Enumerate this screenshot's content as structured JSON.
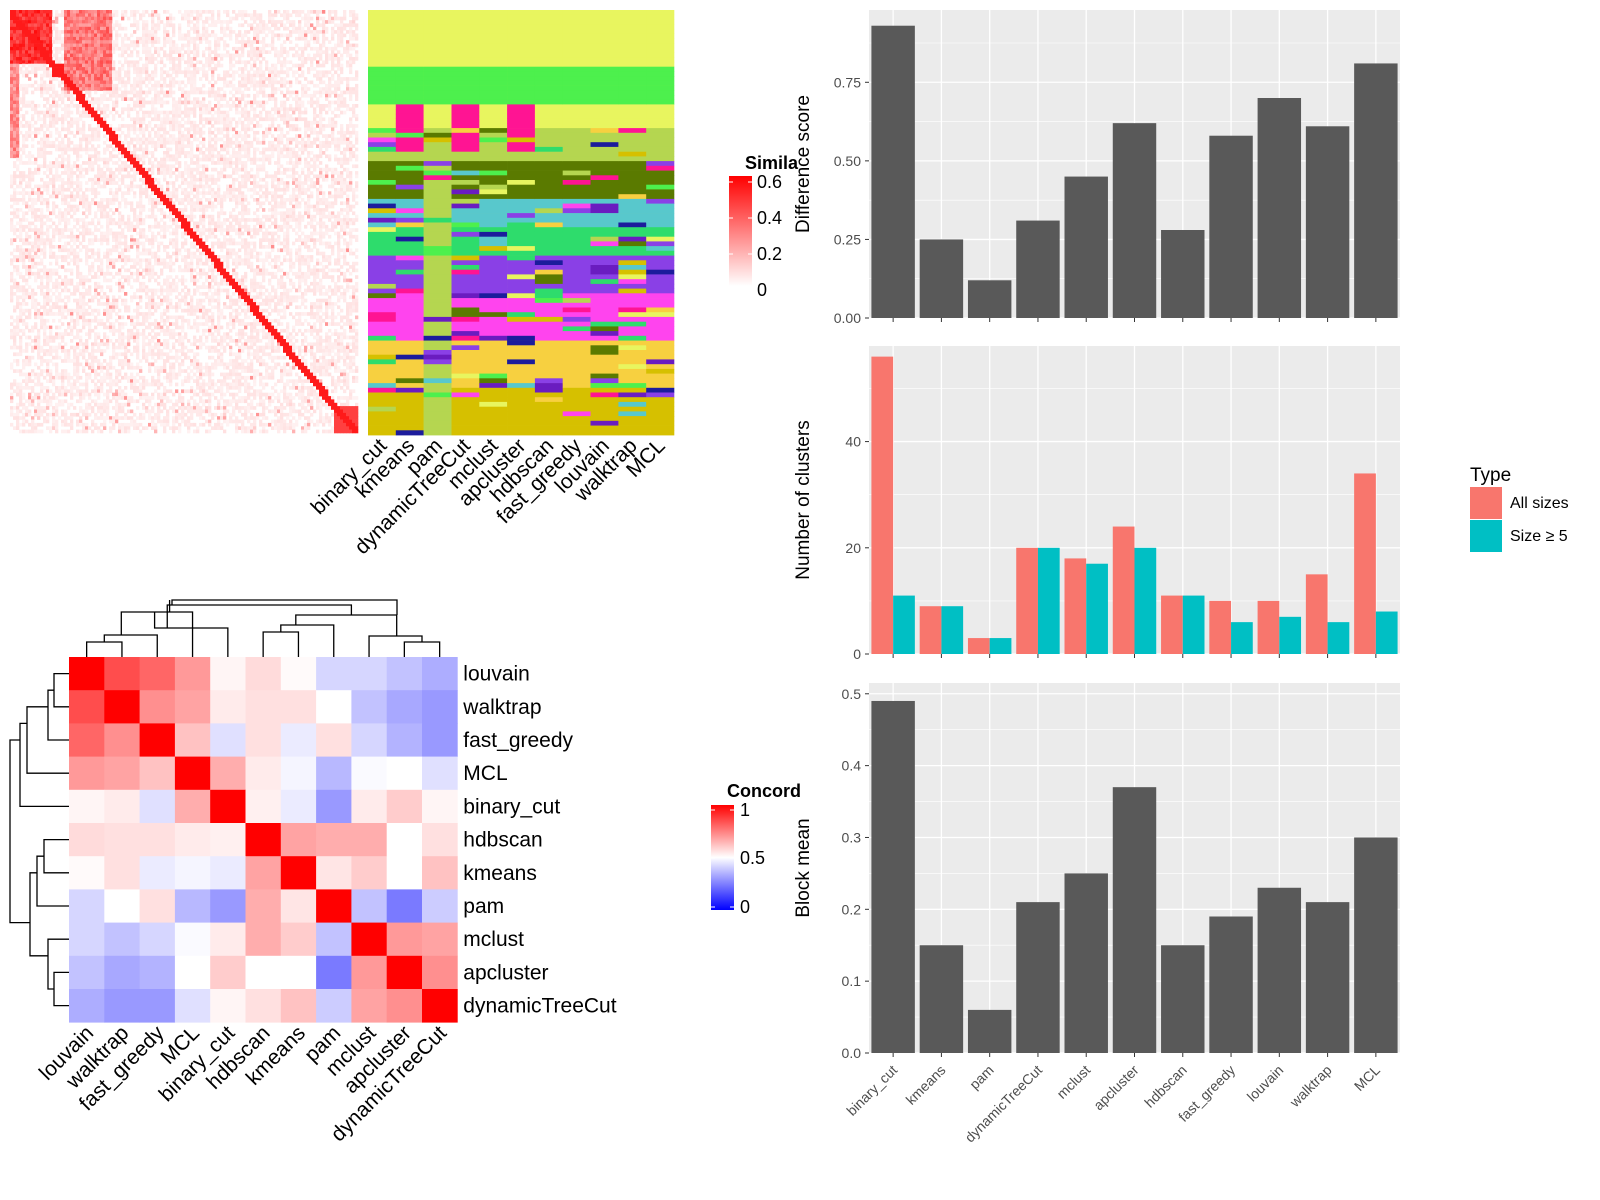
{
  "colors": {
    "panel_bg": "#ebebeb",
    "grid": "#ffffff",
    "bar_gray": "#595959",
    "all_sizes": "#f8766d",
    "size_ge_5": "#00bfc4",
    "heat_red": "#ff0000",
    "heat_white": "#ffffff",
    "heat_blue": "#0000ff"
  },
  "similarity_heatmap": {
    "legend_title": "Simila",
    "legend_ticks": [
      "0.6",
      "0.4",
      "0.2",
      "0"
    ]
  },
  "cluster_assignment": {
    "methods": [
      "binary_cut",
      "kmeans",
      "pam",
      "dynamicTreeCut",
      "mclust",
      "apcluster",
      "hdbscan",
      "fast_greedy",
      "louvain",
      "walktrap",
      "MCL"
    ]
  },
  "concordance_heatmap": {
    "legend_title": "Concord",
    "legend_ticks": [
      "1",
      "0.5",
      "0"
    ],
    "order": [
      "louvain",
      "walktrap",
      "fast_greedy",
      "MCL",
      "binary_cut",
      "hdbscan",
      "kmeans",
      "pam",
      "mclust",
      "apcluster",
      "dynamicTreeCut"
    ],
    "matrix": [
      [
        1.0,
        0.85,
        0.8,
        0.7,
        0.52,
        0.57,
        0.51,
        0.42,
        0.42,
        0.38,
        0.34
      ],
      [
        0.85,
        1.0,
        0.72,
        0.68,
        0.54,
        0.56,
        0.56,
        0.5,
        0.38,
        0.33,
        0.3
      ],
      [
        0.8,
        0.72,
        1.0,
        0.62,
        0.44,
        0.56,
        0.46,
        0.56,
        0.42,
        0.35,
        0.3
      ],
      [
        0.7,
        0.68,
        0.62,
        1.0,
        0.66,
        0.54,
        0.48,
        0.36,
        0.49,
        0.5,
        0.44
      ],
      [
        0.52,
        0.54,
        0.44,
        0.66,
        1.0,
        0.53,
        0.46,
        0.3,
        0.54,
        0.6,
        0.52
      ],
      [
        0.57,
        0.56,
        0.56,
        0.54,
        0.53,
        1.0,
        0.68,
        0.66,
        0.66,
        0.5,
        0.56
      ],
      [
        0.51,
        0.56,
        0.46,
        0.48,
        0.46,
        0.68,
        1.0,
        0.55,
        0.6,
        0.5,
        0.62
      ],
      [
        0.42,
        0.5,
        0.56,
        0.36,
        0.3,
        0.66,
        0.55,
        1.0,
        0.38,
        0.24,
        0.4
      ],
      [
        0.42,
        0.38,
        0.42,
        0.49,
        0.54,
        0.66,
        0.6,
        0.38,
        1.0,
        0.7,
        0.68
      ],
      [
        0.38,
        0.33,
        0.35,
        0.5,
        0.6,
        0.5,
        0.5,
        0.24,
        0.7,
        1.0,
        0.72
      ],
      [
        0.34,
        0.3,
        0.3,
        0.44,
        0.52,
        0.56,
        0.62,
        0.4,
        0.68,
        0.72,
        1.0
      ]
    ]
  },
  "legends": {
    "type": {
      "title": "Type",
      "items": [
        {
          "label": "All sizes",
          "color": "#f8766d"
        },
        {
          "label": "Size ≥ 5",
          "color": "#00bfc4"
        }
      ]
    }
  },
  "chart_data": [
    {
      "type": "bar",
      "ylabel": "Difference score",
      "xlabel": "",
      "categories": [
        "binary_cut",
        "kmeans",
        "pam",
        "dynamicTreeCut",
        "mclust",
        "apcluster",
        "hdbscan",
        "fast_greedy",
        "louvain",
        "walktrap",
        "MCL"
      ],
      "values": [
        0.93,
        0.25,
        0.12,
        0.31,
        0.45,
        0.62,
        0.28,
        0.58,
        0.7,
        0.61,
        0.81
      ],
      "ylim": [
        0,
        0.98
      ],
      "yticks": [
        "0.00",
        "0.25",
        "0.50",
        "0.75"
      ],
      "grid": true
    },
    {
      "type": "bar",
      "ylabel": "Number of clusters",
      "xlabel": "",
      "categories": [
        "binary_cut",
        "kmeans",
        "pam",
        "dynamicTreeCut",
        "mclust",
        "apcluster",
        "hdbscan",
        "fast_greedy",
        "louvain",
        "walktrap",
        "MCL"
      ],
      "series": [
        {
          "name": "All sizes",
          "values": [
            56,
            9,
            3,
            20,
            18,
            24,
            11,
            10,
            10,
            15,
            34
          ]
        },
        {
          "name": "Size ≥ 5",
          "values": [
            11,
            9,
            3,
            20,
            17,
            20,
            11,
            6,
            7,
            6,
            8
          ]
        }
      ],
      "ylim": [
        0,
        58
      ],
      "yticks": [
        "0",
        "20",
        "40"
      ],
      "legend": "right",
      "grid": true
    },
    {
      "type": "bar",
      "ylabel": "Block mean",
      "xlabel": "",
      "categories": [
        "binary_cut",
        "kmeans",
        "pam",
        "dynamicTreeCut",
        "mclust",
        "apcluster",
        "hdbscan",
        "fast_greedy",
        "louvain",
        "walktrap",
        "MCL"
      ],
      "values": [
        0.49,
        0.15,
        0.06,
        0.21,
        0.25,
        0.37,
        0.15,
        0.19,
        0.23,
        0.21,
        0.3
      ],
      "ylim": [
        0,
        0.515
      ],
      "yticks": [
        "0.0",
        "0.1",
        "0.2",
        "0.3",
        "0.4",
        "0.5"
      ],
      "grid": true
    }
  ]
}
